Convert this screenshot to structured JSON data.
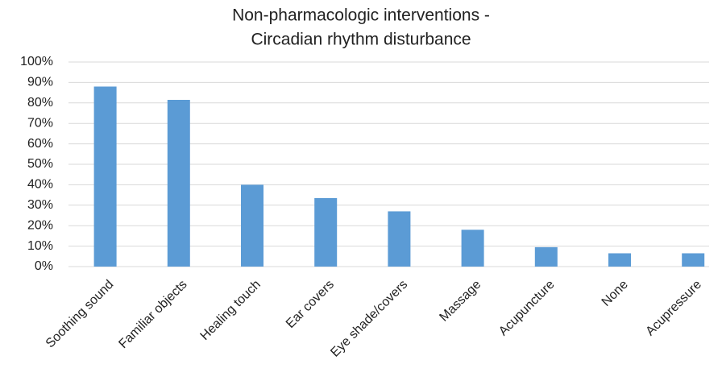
{
  "chart_data": {
    "type": "bar",
    "title": [
      "Non-pharmacologic interventions -",
      "Circadian rhythm disturbance"
    ],
    "categories": [
      "Soothing sound",
      "Familiar objects",
      "Healing touch",
      "Ear covers",
      "Eye shade/covers",
      "Massage",
      "Acupuncture",
      "None",
      "Acupressure"
    ],
    "values": [
      88,
      81.5,
      40,
      33.5,
      27,
      18,
      9.5,
      6.5,
      6.5
    ],
    "color": "#5b9bd5",
    "ylim": [
      0,
      100
    ],
    "yticks": [
      {
        "value": 0,
        "label": "0%"
      },
      {
        "value": 10,
        "label": "10%"
      },
      {
        "value": 20,
        "label": "20%"
      },
      {
        "value": 30,
        "label": "30%"
      },
      {
        "value": 40,
        "label": "40%"
      },
      {
        "value": 50,
        "label": "50%"
      },
      {
        "value": 60,
        "label": "60%"
      },
      {
        "value": 70,
        "label": "70%"
      },
      {
        "value": 80,
        "label": "80%"
      },
      {
        "value": 90,
        "label": "90%"
      },
      {
        "value": 100,
        "label": "100%"
      }
    ],
    "grid": true
  }
}
